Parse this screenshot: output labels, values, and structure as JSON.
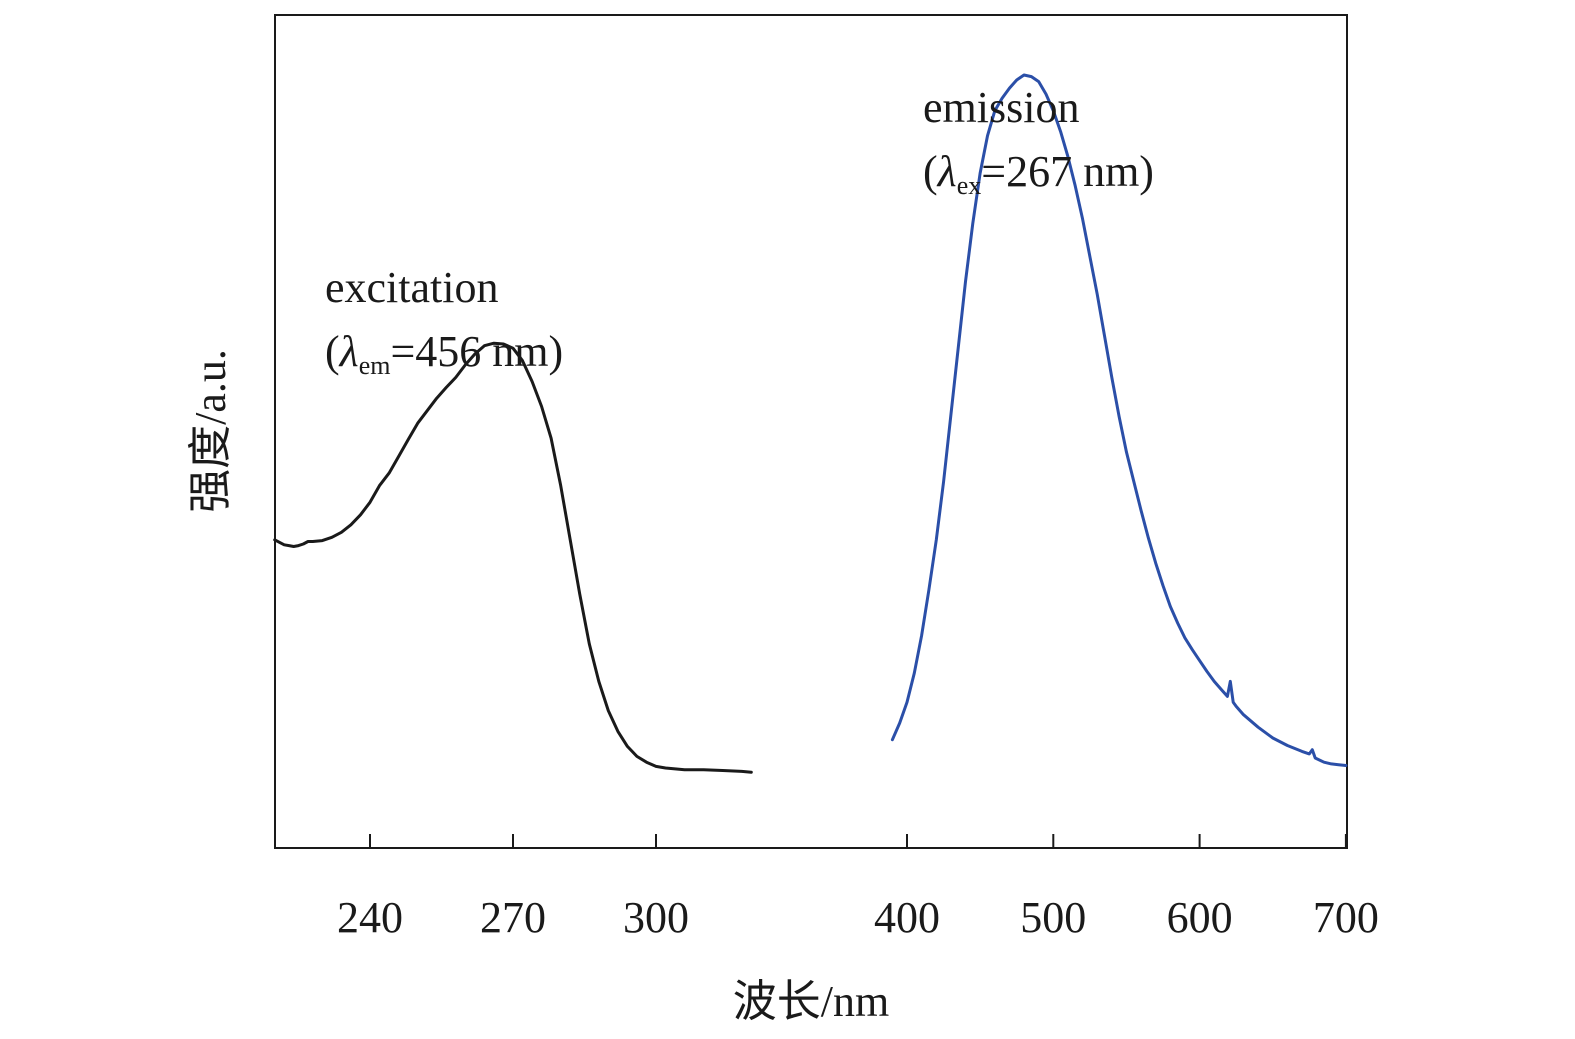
{
  "chart_data": {
    "type": "line",
    "ylabel": "强度/a.u.",
    "xlabel": "波长/nm",
    "xaxis_note": "broken axis: excitation segment (linear, ~220-320 nm) and emission segment (400-700 nm)",
    "ticks_excitation": [
      240,
      270,
      300
    ],
    "ticks_emission": [
      400,
      500,
      600,
      700
    ],
    "tick_labels_excitation": [
      "240",
      "270",
      "300"
    ],
    "tick_labels_emission": [
      "400",
      "500",
      "600",
      "700"
    ],
    "series": [
      {
        "name": "excitation",
        "color": "#1a1a1a",
        "annotation": {
          "title": "excitation",
          "prefix": "(",
          "lambda": "λ",
          "subscript": "em",
          "suffix": "=456 nm)"
        },
        "points": [
          [
            220,
            0.37
          ],
          [
            221,
            0.367
          ],
          [
            222,
            0.364
          ],
          [
            223,
            0.363
          ],
          [
            224,
            0.362
          ],
          [
            225,
            0.363
          ],
          [
            226,
            0.365
          ],
          [
            227,
            0.368
          ],
          [
            228,
            0.368
          ],
          [
            230,
            0.369
          ],
          [
            232,
            0.373
          ],
          [
            234,
            0.379
          ],
          [
            236,
            0.388
          ],
          [
            238,
            0.4
          ],
          [
            240,
            0.415
          ],
          [
            242,
            0.435
          ],
          [
            244,
            0.45
          ],
          [
            246,
            0.47
          ],
          [
            248,
            0.49
          ],
          [
            250,
            0.51
          ],
          [
            252,
            0.525
          ],
          [
            254,
            0.54
          ],
          [
            256,
            0.553
          ],
          [
            258,
            0.565
          ],
          [
            260,
            0.58
          ],
          [
            262,
            0.593
          ],
          [
            264,
            0.603
          ],
          [
            266,
            0.606
          ],
          [
            268,
            0.605
          ],
          [
            270,
            0.6
          ],
          [
            272,
            0.585
          ],
          [
            274,
            0.56
          ],
          [
            276,
            0.53
          ],
          [
            278,
            0.492
          ],
          [
            280,
            0.435
          ],
          [
            282,
            0.37
          ],
          [
            284,
            0.305
          ],
          [
            286,
            0.245
          ],
          [
            288,
            0.2
          ],
          [
            290,
            0.165
          ],
          [
            292,
            0.14
          ],
          [
            294,
            0.122
          ],
          [
            296,
            0.11
          ],
          [
            298,
            0.103
          ],
          [
            300,
            0.098
          ],
          [
            302,
            0.096
          ],
          [
            304,
            0.095
          ],
          [
            306,
            0.094
          ],
          [
            310,
            0.094
          ],
          [
            314,
            0.093
          ],
          [
            318,
            0.092
          ],
          [
            320,
            0.091
          ]
        ]
      },
      {
        "name": "emission",
        "color": "#2b4fa8",
        "annotation": {
          "title": "emission",
          "prefix": "(",
          "lambda": "λ",
          "subscript": "ex",
          "suffix": "=267 nm)"
        },
        "points": [
          [
            390,
            0.13
          ],
          [
            395,
            0.15
          ],
          [
            400,
            0.175
          ],
          [
            405,
            0.21
          ],
          [
            410,
            0.255
          ],
          [
            415,
            0.31
          ],
          [
            420,
            0.37
          ],
          [
            425,
            0.44
          ],
          [
            430,
            0.52
          ],
          [
            435,
            0.6
          ],
          [
            440,
            0.68
          ],
          [
            445,
            0.75
          ],
          [
            450,
            0.81
          ],
          [
            455,
            0.855
          ],
          [
            460,
            0.885
          ],
          [
            465,
            0.9
          ],
          [
            470,
            0.912
          ],
          [
            475,
            0.922
          ],
          [
            480,
            0.928
          ],
          [
            485,
            0.926
          ],
          [
            490,
            0.92
          ],
          [
            495,
            0.905
          ],
          [
            500,
            0.885
          ],
          [
            505,
            0.86
          ],
          [
            510,
            0.83
          ],
          [
            515,
            0.795
          ],
          [
            520,
            0.755
          ],
          [
            525,
            0.71
          ],
          [
            530,
            0.665
          ],
          [
            535,
            0.615
          ],
          [
            540,
            0.565
          ],
          [
            545,
            0.518
          ],
          [
            550,
            0.475
          ],
          [
            555,
            0.44
          ],
          [
            560,
            0.405
          ],
          [
            565,
            0.372
          ],
          [
            570,
            0.342
          ],
          [
            575,
            0.315
          ],
          [
            580,
            0.29
          ],
          [
            585,
            0.27
          ],
          [
            590,
            0.252
          ],
          [
            595,
            0.238
          ],
          [
            600,
            0.225
          ],
          [
            605,
            0.212
          ],
          [
            610,
            0.2
          ],
          [
            615,
            0.19
          ],
          [
            619,
            0.182
          ],
          [
            621,
            0.2
          ],
          [
            623,
            0.175
          ],
          [
            625,
            0.17
          ],
          [
            630,
            0.16
          ],
          [
            640,
            0.145
          ],
          [
            650,
            0.132
          ],
          [
            660,
            0.123
          ],
          [
            670,
            0.116
          ],
          [
            675,
            0.113
          ],
          [
            677,
            0.118
          ],
          [
            679,
            0.108
          ],
          [
            685,
            0.103
          ],
          [
            690,
            0.101
          ],
          [
            695,
            0.1
          ],
          [
            700,
            0.099
          ]
        ]
      }
    ]
  }
}
